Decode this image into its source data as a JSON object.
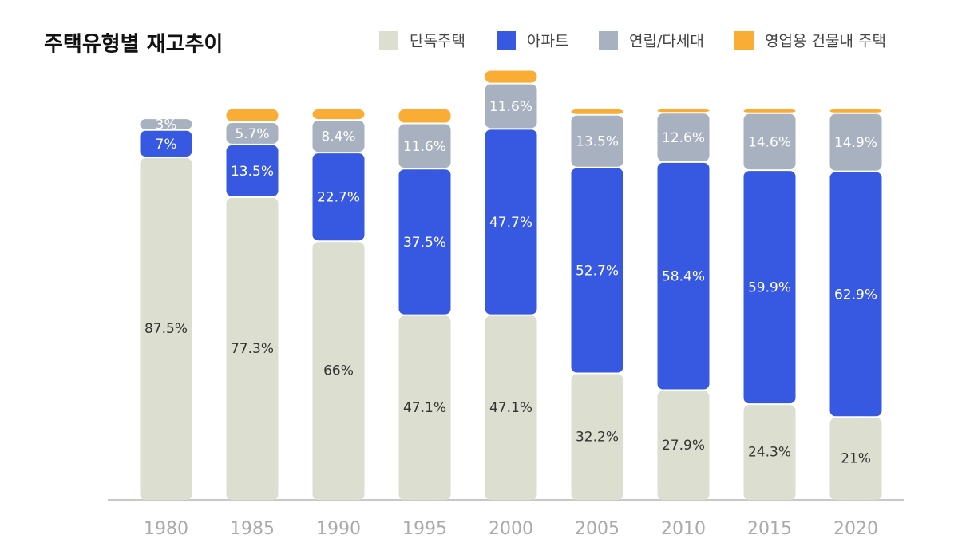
{
  "chart_data": {
    "type": "stacked_bar",
    "title": "주택유형별  재고추이",
    "categories": [
      "1980",
      "1985",
      "1990",
      "1995",
      "2000",
      "2005",
      "2010",
      "2015",
      "2020"
    ],
    "series": [
      {
        "name": "단독주택",
        "color": "#dcdecf",
        "values": [
          87.5,
          77.3,
          66,
          47.1,
          47.1,
          32.2,
          27.9,
          24.3,
          21
        ],
        "value_labels": [
          "87.5%",
          "77.3%",
          "66%",
          "47.1%",
          "47.1%",
          "32.2%",
          "27.9%",
          "24.3%",
          "21%"
        ]
      },
      {
        "name": "아파트",
        "color": "#3758e0",
        "values": [
          7,
          13.5,
          22.7,
          37.5,
          47.7,
          52.7,
          58.4,
          59.9,
          62.9
        ],
        "value_labels": [
          "7%",
          "13.5%",
          "22.7%",
          "37.5%",
          "47.7%",
          "52.7%",
          "58.4%",
          "59.9%",
          "62.9%"
        ]
      },
      {
        "name": "연립/다세대",
        "color": "#a7b1c0",
        "values": [
          3,
          5.7,
          8.4,
          11.6,
          11.6,
          13.5,
          12.6,
          14.6,
          14.9
        ],
        "value_labels": [
          "3%",
          "5.7%",
          "8.4%",
          "11.6%",
          "11.6%",
          "13.5%",
          "12.6%",
          "14.6%",
          "14.9%"
        ]
      },
      {
        "name": "영업용 건물내 주택",
        "color": "#f9ad35",
        "values": [
          0,
          3.5,
          2.9,
          3.8,
          3.5,
          1.6,
          1.1,
          1.2,
          1.2
        ]
      }
    ],
    "ylim": [
      0,
      110
    ]
  }
}
